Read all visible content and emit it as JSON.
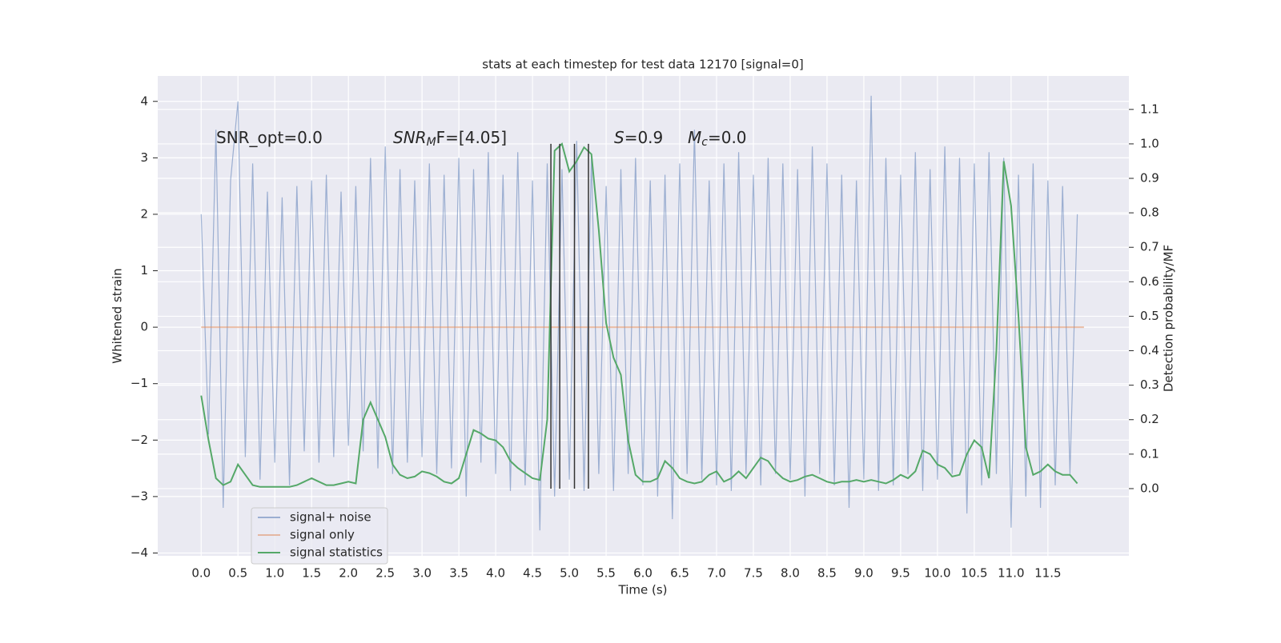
{
  "chart_data": {
    "type": "line",
    "title": "stats at each timestep for test data 12170 [signal=0]",
    "xlabel": "Time (s)",
    "ylabel": "Whitened strain",
    "y2label": "Detection probability/MF",
    "annotations": [
      {
        "text": "SNR_opt=0.0",
        "italic": false
      },
      {
        "text": "SNR",
        "sub": "M",
        "rest": "F=[4.05]",
        "italic": true
      },
      {
        "text": "S",
        "rest": "=0.9",
        "italic": true
      },
      {
        "text": "M",
        "sub": "c",
        "rest": "=0.0",
        "italic": true
      }
    ],
    "x": [
      0,
      0.1,
      0.2,
      0.3,
      0.4,
      0.5,
      0.6,
      0.7,
      0.8,
      0.9,
      1,
      1.1,
      1.2,
      1.3,
      1.4,
      1.5,
      1.6,
      1.7,
      1.8,
      1.9,
      2,
      2.1,
      2.2,
      2.3,
      2.4,
      2.5,
      2.6,
      2.7,
      2.8,
      2.9,
      3,
      3.1,
      3.2,
      3.3,
      3.4,
      3.5,
      3.6,
      3.7,
      3.8,
      3.9,
      4,
      4.1,
      4.2,
      4.3,
      4.4,
      4.5,
      4.6,
      4.7,
      4.8,
      4.9,
      5,
      5.1,
      5.2,
      5.3,
      5.4,
      5.5,
      5.6,
      5.7,
      5.8,
      5.9,
      6,
      6.1,
      6.2,
      6.3,
      6.4,
      6.5,
      6.6,
      6.7,
      6.8,
      6.9,
      7,
      7.1,
      7.2,
      7.3,
      7.4,
      7.5,
      7.6,
      7.7,
      7.8,
      7.9,
      8,
      8.1,
      8.2,
      8.3,
      8.4,
      8.5,
      8.6,
      8.7,
      8.8,
      8.9,
      9,
      9.1,
      9.2,
      9.3,
      9.4,
      9.5,
      9.6,
      9.7,
      9.8,
      9.9,
      10,
      10.1,
      10.2,
      10.3,
      10.4,
      10.5,
      10.6,
      10.7,
      10.8,
      10.9,
      11,
      11.1,
      11.2,
      11.3,
      11.4,
      11.5,
      11.6,
      11.7,
      11.8,
      11.9
    ],
    "series": [
      {
        "name": "signal+ noise",
        "color": "#4c72b0",
        "values": [
          2.0,
          -1.9,
          3.5,
          -3.2,
          2.6,
          4.0,
          -2.3,
          2.9,
          -2.7,
          2.4,
          -2.4,
          2.3,
          -2.8,
          2.5,
          -2.2,
          2.6,
          -2.4,
          2.7,
          -2.3,
          2.4,
          -2.1,
          2.5,
          -2.2,
          3.0,
          -2.5,
          3.2,
          -2.6,
          2.8,
          -2.4,
          2.6,
          -2.3,
          2.9,
          -2.6,
          2.7,
          -2.5,
          3.0,
          -3.0,
          2.8,
          -2.4,
          3.1,
          -2.6,
          2.7,
          -2.9,
          3.1,
          -2.8,
          2.6,
          -3.6,
          2.9,
          -3.0,
          2.8,
          -2.7,
          3.3,
          -2.9,
          3.0,
          -2.6,
          2.5,
          -2.9,
          2.8,
          -2.6,
          3.0,
          -2.8,
          2.6,
          -3.0,
          2.7,
          -3.4,
          2.9,
          -2.6,
          3.5,
          -2.7,
          2.6,
          -2.8,
          2.9,
          -2.9,
          3.1,
          -2.6,
          2.7,
          -2.8,
          3.0,
          -2.6,
          2.9,
          -2.7,
          2.8,
          -3.0,
          3.2,
          -2.6,
          2.9,
          -2.8,
          2.7,
          -3.2,
          2.6,
          -2.7,
          4.1,
          -2.9,
          3.0,
          -2.8,
          2.7,
          -2.6,
          3.1,
          -2.9,
          2.8,
          -2.7,
          3.2,
          -2.6,
          3.0,
          -3.3,
          2.9,
          -2.8,
          3.1,
          -2.6,
          3.0,
          -3.55,
          2.7,
          -3.0,
          2.9,
          -3.2,
          2.6,
          -2.8,
          2.5,
          -2.6,
          2.0
        ]
      },
      {
        "name": "signal only",
        "color": "#dd8452",
        "x": [
          0,
          11.99
        ],
        "values": [
          0,
          0
        ]
      },
      {
        "name": "signal statistics",
        "color": "#55a868",
        "axis": "y2",
        "values": [
          0.27,
          0.14,
          0.03,
          0.01,
          0.02,
          0.07,
          0.04,
          0.01,
          0.005,
          0.005,
          0.005,
          0.005,
          0.005,
          0.01,
          0.02,
          0.03,
          0.02,
          0.01,
          0.01,
          0.015,
          0.02,
          0.015,
          0.2,
          0.25,
          0.2,
          0.15,
          0.07,
          0.04,
          0.03,
          0.035,
          0.05,
          0.045,
          0.035,
          0.02,
          0.015,
          0.03,
          0.1,
          0.17,
          0.16,
          0.145,
          0.14,
          0.12,
          0.08,
          0.06,
          0.045,
          0.03,
          0.025,
          0.2,
          0.98,
          1.0,
          0.92,
          0.95,
          0.99,
          0.97,
          0.75,
          0.48,
          0.38,
          0.33,
          0.14,
          0.04,
          0.02,
          0.02,
          0.03,
          0.08,
          0.06,
          0.03,
          0.02,
          0.015,
          0.02,
          0.04,
          0.05,
          0.02,
          0.03,
          0.05,
          0.03,
          0.06,
          0.09,
          0.08,
          0.05,
          0.03,
          0.02,
          0.025,
          0.035,
          0.04,
          0.03,
          0.02,
          0.015,
          0.02,
          0.02,
          0.025,
          0.02,
          0.025,
          0.02,
          0.015,
          0.025,
          0.04,
          0.03,
          0.05,
          0.11,
          0.1,
          0.07,
          0.06,
          0.035,
          0.04,
          0.1,
          0.14,
          0.12,
          0.03,
          0.4,
          0.95,
          0.82,
          0.5,
          0.12,
          0.04,
          0.05,
          0.07,
          0.05,
          0.04,
          0.04,
          0.015
        ]
      }
    ],
    "markers": {
      "x": [
        4.75,
        4.87,
        5.07,
        5.26
      ],
      "y2span": [
        0,
        1
      ],
      "color": "#333333"
    },
    "xlim": [
      -0.59,
      12.6
    ],
    "ylim": [
      -4.05,
      4.45
    ],
    "y2lim": [
      -0.195,
      1.197
    ],
    "xticks": [
      {
        "value": 0,
        "label": "0.0"
      },
      0.5,
      {
        "value": 1,
        "label": "1.0"
      },
      1.5,
      {
        "value": 2,
        "label": "2.0"
      },
      2.5,
      {
        "value": 3,
        "label": "3.0"
      },
      3.5,
      {
        "value": 4,
        "label": "4.0"
      },
      4.5,
      {
        "value": 5,
        "label": "5.0"
      },
      5.5,
      {
        "value": 6,
        "label": "6.0"
      },
      6.5,
      {
        "value": 7,
        "label": "7.0"
      },
      7.5,
      {
        "value": 8,
        "label": "8.0"
      },
      8.5,
      {
        "value": 9,
        "label": "9.0"
      },
      9.5,
      {
        "value": 10,
        "label": "10.0"
      },
      10.5,
      {
        "value": 11,
        "label": "11.0"
      },
      11.5
    ],
    "yticks": [
      {
        "value": -4,
        "label": "−4"
      },
      {
        "value": -3,
        "label": "−3"
      },
      {
        "value": -2,
        "label": "−2"
      },
      {
        "value": -1,
        "label": "−1"
      },
      0,
      1,
      2,
      3,
      4
    ],
    "y2ticks": [
      {
        "value": 0,
        "label": "0.0"
      },
      0.1,
      0.2,
      0.3,
      0.4,
      0.5,
      0.6,
      0.7,
      0.8,
      0.9,
      {
        "value": 1,
        "label": "1.0"
      },
      1.1
    ],
    "grid": true,
    "legend": "lower left"
  }
}
